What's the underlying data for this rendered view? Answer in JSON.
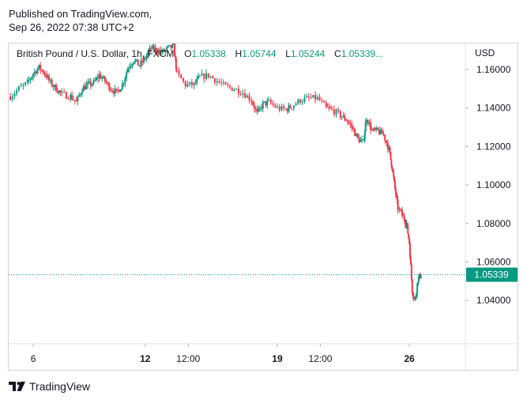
{
  "published": {
    "line1": "Published on TradingView.com,",
    "line2": "Sep 26, 2022 07:38 UTC+2"
  },
  "legend": {
    "symbol": "British Pound / U.S. Dollar, 1h, FXCM",
    "o_label": "O",
    "o_value": "1.05338",
    "h_label": "H",
    "h_value": "1.05744",
    "l_label": "L",
    "l_value": "1.05244",
    "c_label": "C",
    "c_value": "1.05339...",
    "up_color": "#089981",
    "down_color": "#f23645"
  },
  "footer": {
    "brand": "TradingView",
    "logo_icon": "tradingview-logo-icon"
  },
  "chart_data": {
    "type": "candlestick",
    "currency_label": "USD",
    "last_price_label": "1.05339",
    "ylim": [
      1.0175,
      1.1735
    ],
    "y_ticks": [
      "1.16000",
      "1.14000",
      "1.12000",
      "1.10000",
      "1.08000",
      "1.06000",
      "1.04000"
    ],
    "y_tick_values": [
      1.16,
      1.14,
      1.12,
      1.1,
      1.08,
      1.06,
      1.04
    ],
    "x_ticks": [
      {
        "label": "6",
        "bold": false,
        "t": 8
      },
      {
        "label": "12",
        "bold": true,
        "t": 47
      },
      {
        "label": "12:00",
        "bold": false,
        "t": 62
      },
      {
        "label": "19",
        "bold": true,
        "t": 93
      },
      {
        "label": "12:00",
        "bold": false,
        "t": 108
      },
      {
        "label": "26",
        "bold": true,
        "t": 139
      }
    ],
    "x_range": [
      0,
      153
    ],
    "close_path": [
      [
        0,
        1.146
      ],
      [
        3,
        1.15
      ],
      [
        6,
        1.153
      ],
      [
        8,
        1.158
      ],
      [
        10,
        1.161
      ],
      [
        12,
        1.158
      ],
      [
        14,
        1.153
      ],
      [
        16,
        1.15
      ],
      [
        18,
        1.147
      ],
      [
        21,
        1.146
      ],
      [
        23,
        1.143
      ],
      [
        25,
        1.15
      ],
      [
        27,
        1.152
      ],
      [
        29,
        1.153
      ],
      [
        31,
        1.157
      ],
      [
        33,
        1.154
      ],
      [
        35,
        1.15
      ],
      [
        37,
        1.148
      ],
      [
        39,
        1.152
      ],
      [
        41,
        1.161
      ],
      [
        43,
        1.165
      ],
      [
        45,
        1.162
      ],
      [
        47,
        1.166
      ],
      [
        49,
        1.171
      ],
      [
        51,
        1.17
      ],
      [
        53,
        1.169
      ],
      [
        55,
        1.171
      ],
      [
        57,
        1.172
      ],
      [
        58,
        1.158
      ],
      [
        61,
        1.152
      ],
      [
        64,
        1.152
      ],
      [
        66,
        1.156
      ],
      [
        69,
        1.157
      ],
      [
        72,
        1.154
      ],
      [
        75,
        1.151
      ],
      [
        78,
        1.15
      ],
      [
        81,
        1.148
      ],
      [
        84,
        1.144
      ],
      [
        86,
        1.137
      ],
      [
        88,
        1.142
      ],
      [
        90,
        1.143
      ],
      [
        93,
        1.14
      ],
      [
        96,
        1.139
      ],
      [
        98,
        1.141
      ],
      [
        101,
        1.144
      ],
      [
        104,
        1.145
      ],
      [
        107,
        1.145
      ],
      [
        110,
        1.14
      ],
      [
        112,
        1.139
      ],
      [
        115,
        1.136
      ],
      [
        117,
        1.134
      ],
      [
        119,
        1.13
      ],
      [
        121,
        1.124
      ],
      [
        123,
        1.122
      ],
      [
        124,
        1.135
      ],
      [
        126,
        1.128
      ],
      [
        128,
        1.128
      ],
      [
        130,
        1.126
      ],
      [
        132,
        1.118
      ],
      [
        133,
        1.109
      ],
      [
        134,
        1.098
      ],
      [
        135,
        1.088
      ],
      [
        137,
        1.083
      ],
      [
        138,
        1.08
      ],
      [
        139,
        1.07
      ],
      [
        140,
        1.045
      ],
      [
        141,
        1.04
      ],
      [
        142,
        1.051
      ],
      [
        143,
        1.05339
      ]
    ]
  }
}
